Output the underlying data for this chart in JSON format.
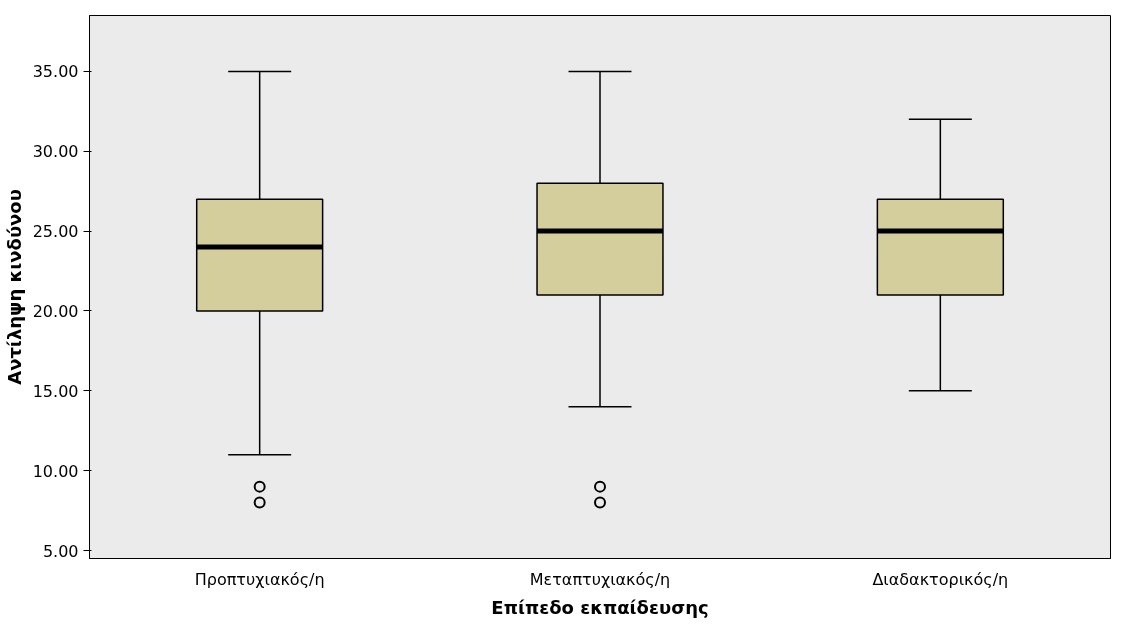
{
  "chart_data": {
    "type": "box",
    "xlabel": "Επίπεδο εκπαίδευσης",
    "ylabel": "Αντίληψη κινδύνου",
    "categories": [
      "Προπτυχιακός/η",
      "Μεταπτυχιακός/η",
      "Διαδακτορικός/η"
    ],
    "series": [
      {
        "color": "#d3ce9b",
        "boxes": [
          {
            "low": 11,
            "q1": 20,
            "median": 24,
            "q3": 27,
            "high": 35,
            "outliers": [
              9,
              8
            ]
          },
          {
            "low": 14,
            "q1": 21,
            "median": 25,
            "q3": 28,
            "high": 35,
            "outliers": [
              9,
              8
            ]
          },
          {
            "low": 15,
            "q1": 21,
            "median": 25,
            "q3": 27,
            "high": 32
          }
        ]
      }
    ],
    "ylim": [
      4.5,
      38.5
    ],
    "yticks": [
      {
        "value": 5,
        "label": "5.00"
      },
      {
        "value": 10,
        "label": "10.00"
      },
      {
        "value": 15,
        "label": "15.00"
      },
      {
        "value": 20,
        "label": "20.00"
      },
      {
        "value": 25,
        "label": "25.00"
      },
      {
        "value": 30,
        "label": "30.00"
      },
      {
        "value": 35,
        "label": "35.00"
      }
    ],
    "grid": false
  }
}
